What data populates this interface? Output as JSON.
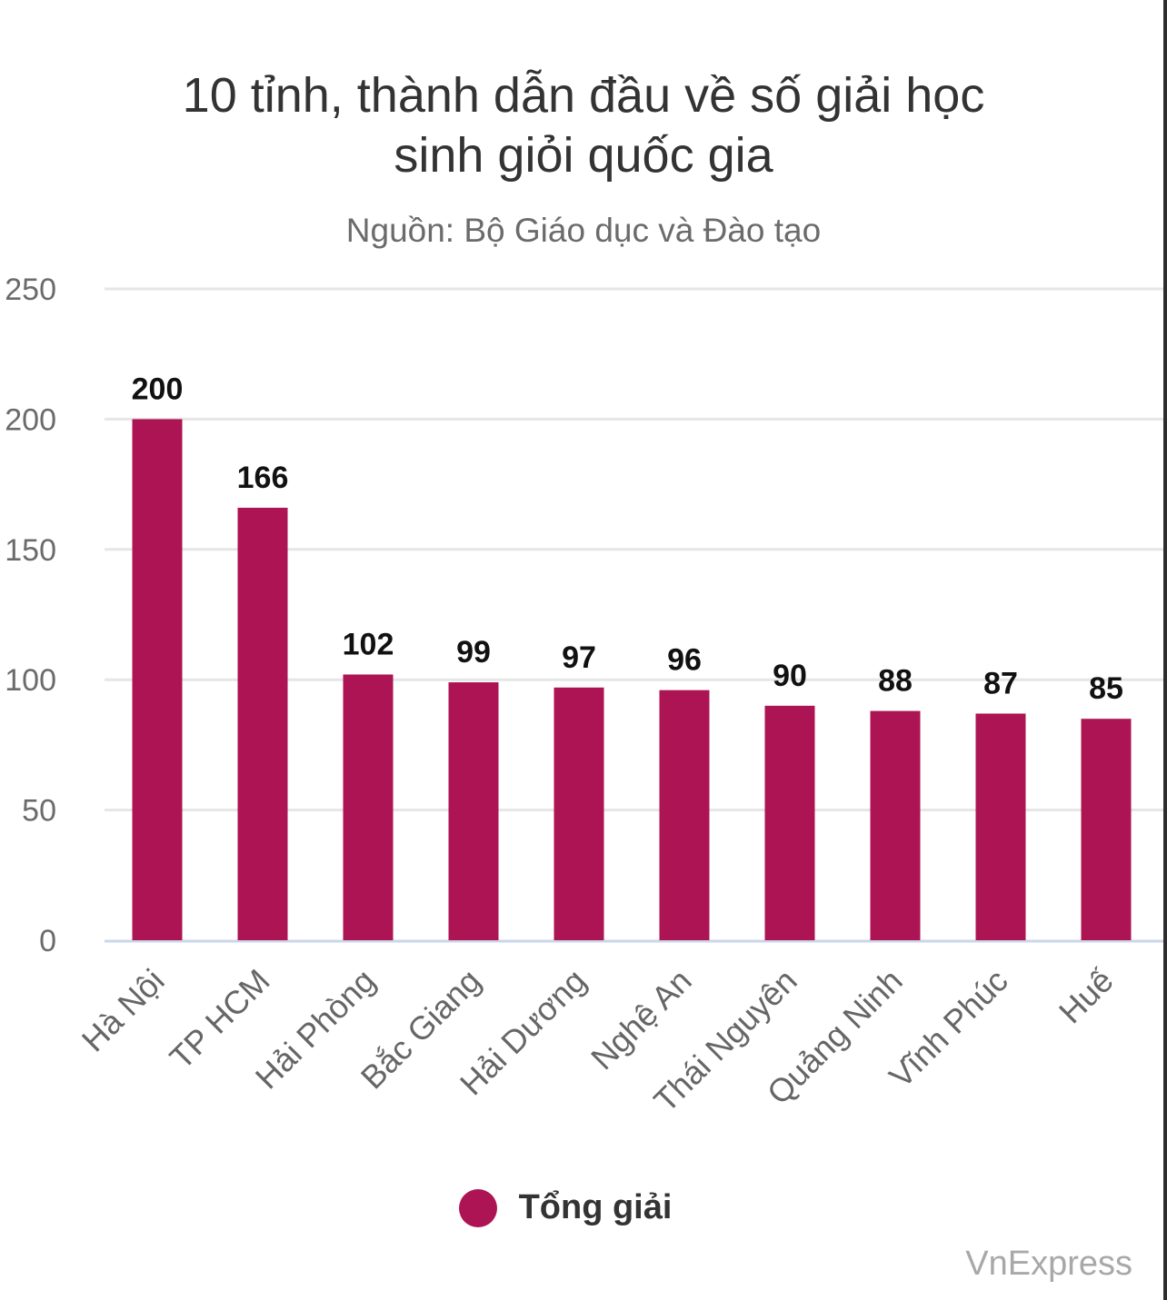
{
  "chart_data": {
    "type": "bar",
    "title": "10 tỉnh, thành dẫn đầu về số giải học sinh giỏi quốc gia",
    "subtitle": "Nguồn: Bộ Giáo dục và Đào tạo",
    "categories": [
      "Hà Nội",
      "TP HCM",
      "Hải Phòng",
      "Bắc Giang",
      "Hải Dương",
      "Nghệ An",
      "Thái Nguyên",
      "Quảng Ninh",
      "Vĩnh Phúc",
      "Huế"
    ],
    "series": [
      {
        "name": "Tổng giải",
        "values": [
          200,
          166,
          102,
          99,
          97,
          96,
          90,
          88,
          87,
          85
        ],
        "color": "#ad1453"
      }
    ],
    "ylim": [
      0,
      250
    ],
    "yticks": [
      0,
      50,
      100,
      150,
      200,
      250
    ],
    "xlabel": "",
    "ylabel": "",
    "grid": true,
    "legend_position": "bottom-center",
    "data_labels": true
  },
  "credit": "VnExpress",
  "colors": {
    "bar": "#ad1453",
    "grid": "#e6e6e6",
    "axis": "#ccd6eb"
  }
}
